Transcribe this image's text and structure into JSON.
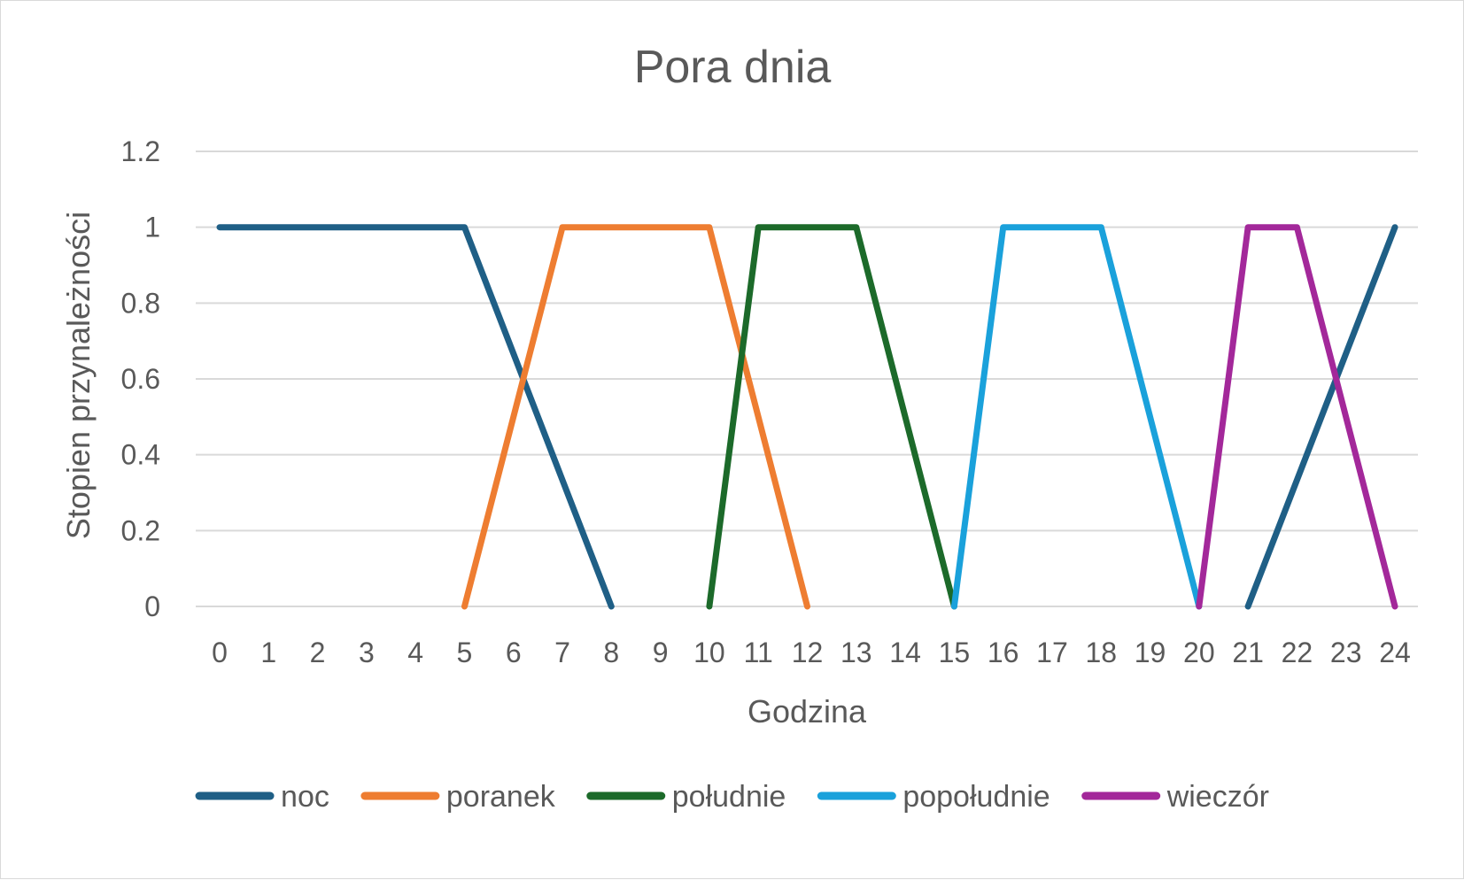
{
  "chart_data": {
    "type": "line",
    "title": "Pora dnia",
    "xlabel": "Godzina",
    "ylabel": "Stopien przynależności",
    "x": [
      0,
      1,
      2,
      3,
      4,
      5,
      6,
      7,
      8,
      9,
      10,
      11,
      12,
      13,
      14,
      15,
      16,
      17,
      18,
      19,
      20,
      21,
      22,
      23,
      24
    ],
    "y_ticks": [
      "0",
      "0.2",
      "0.4",
      "0.6",
      "0.8",
      "1",
      "1.2"
    ],
    "ylim": [
      0,
      1.2
    ],
    "grid": true,
    "legend_position": "bottom",
    "series": [
      {
        "name": "noc",
        "color": "#1f5f86",
        "points": [
          [
            0,
            1
          ],
          [
            5,
            1
          ],
          [
            8,
            0
          ]
        ]
      },
      {
        "name": "noc",
        "color": "#1f5f86",
        "points": [
          [
            21,
            0
          ],
          [
            24,
            1
          ]
        ]
      },
      {
        "name": "poranek",
        "color": "#ee7d31",
        "points": [
          [
            5,
            0
          ],
          [
            7,
            1
          ],
          [
            10,
            1
          ],
          [
            12,
            0
          ]
        ]
      },
      {
        "name": "południe",
        "color": "#1c6a2a",
        "points": [
          [
            10,
            0
          ],
          [
            11,
            1
          ],
          [
            13,
            1
          ],
          [
            15,
            0
          ]
        ]
      },
      {
        "name": "popołudnie",
        "color": "#1aa1db",
        "points": [
          [
            15,
            0
          ],
          [
            16,
            1
          ],
          [
            18,
            1
          ],
          [
            20,
            0
          ]
        ]
      },
      {
        "name": "wieczór",
        "color": "#a3289a",
        "points": [
          [
            20,
            0
          ],
          [
            21,
            1
          ],
          [
            22,
            1
          ],
          [
            24,
            0
          ]
        ]
      }
    ],
    "legend": [
      {
        "name": "noc",
        "color": "#1f5f86"
      },
      {
        "name": "poranek",
        "color": "#ee7d31"
      },
      {
        "name": "południe",
        "color": "#1c6a2a"
      },
      {
        "name": "popołudnie",
        "color": "#1aa1db"
      },
      {
        "name": "wieczór",
        "color": "#a3289a"
      }
    ]
  }
}
